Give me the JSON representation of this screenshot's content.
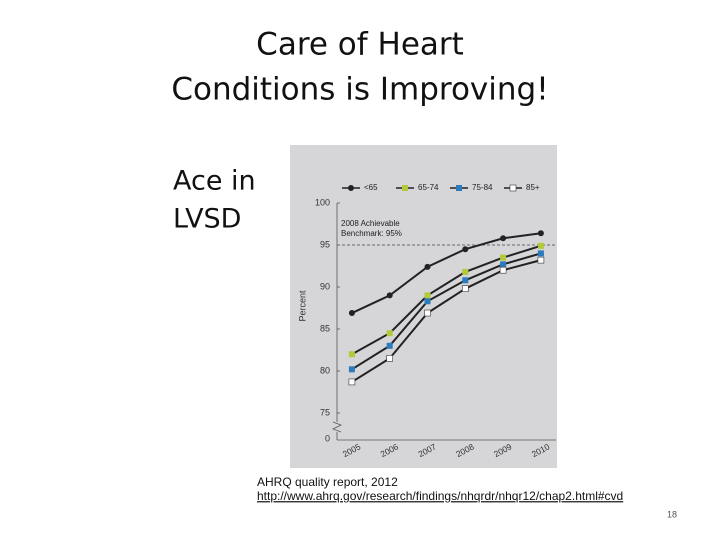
{
  "slide": {
    "title_lines": [
      "Care of Heart",
      "Conditions is Improving!"
    ],
    "side_lines": [
      "Ace in",
      "LVSD"
    ],
    "source_lines": [
      "AHRQ quality report, 2012",
      "http://www.ahrq.gov/research/findings/nhqrdr/nhqr12/chap2.html#cvd"
    ],
    "page_number": "18"
  },
  "chart_data": {
    "type": "line",
    "y_label": "Percent",
    "categories": [
      "2005",
      "2006",
      "2007",
      "2008",
      "2009",
      "2010"
    ],
    "series": [
      {
        "name": "<65",
        "color": "#222222",
        "marker": "circle",
        "values": [
          86.9,
          89.0,
          92.4,
          94.5,
          95.8,
          96.4
        ]
      },
      {
        "name": "65-74",
        "color": "#b5c83a",
        "marker": "square",
        "values": [
          82.0,
          84.5,
          89.0,
          91.8,
          93.5,
          94.9
        ]
      },
      {
        "name": "75-84",
        "color": "#2b7bbd",
        "marker": "square",
        "values": [
          80.2,
          83.0,
          88.3,
          90.8,
          92.7,
          94.0
        ]
      },
      {
        "name": "85+",
        "color": "#ffffff",
        "marker": "square",
        "values": [
          78.7,
          81.5,
          86.9,
          89.8,
          92.0,
          93.2
        ]
      }
    ],
    "line_color": "#222222",
    "ylim": [
      75,
      100
    ],
    "yticks": [
      75,
      80,
      85,
      90,
      95,
      100
    ],
    "y_break_tick": 0,
    "benchmark": {
      "value": 95,
      "label_lines": [
        "2008 Achievable",
        "Benchmark: 95%"
      ]
    },
    "legend": "top"
  }
}
